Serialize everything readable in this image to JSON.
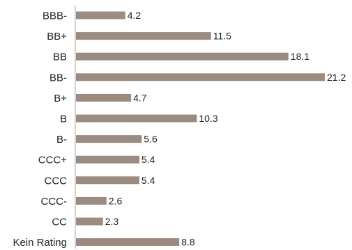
{
  "chart_data": {
    "type": "bar",
    "orientation": "horizontal",
    "categories": [
      "BBB-",
      "BB+",
      "BB",
      "BB-",
      "B+",
      "B",
      "B-",
      "CCC+",
      "CCC",
      "CCC-",
      "CC",
      "Kein Rating"
    ],
    "values": [
      4.2,
      11.5,
      18.1,
      21.2,
      4.7,
      10.3,
      5.6,
      5.4,
      5.4,
      2.6,
      2.3,
      8.8
    ],
    "value_labels": [
      "4.2",
      "11.5",
      "18.1",
      "21.2",
      "4.7",
      "10.3",
      "5.6",
      "5.4",
      "5.4",
      "2.6",
      "2.3",
      "8.8"
    ],
    "bar_color": "#9b8b80",
    "axis_color": "#aaaaaa",
    "grid": false,
    "legend": "none",
    "xlim": [
      0,
      21.2
    ]
  }
}
